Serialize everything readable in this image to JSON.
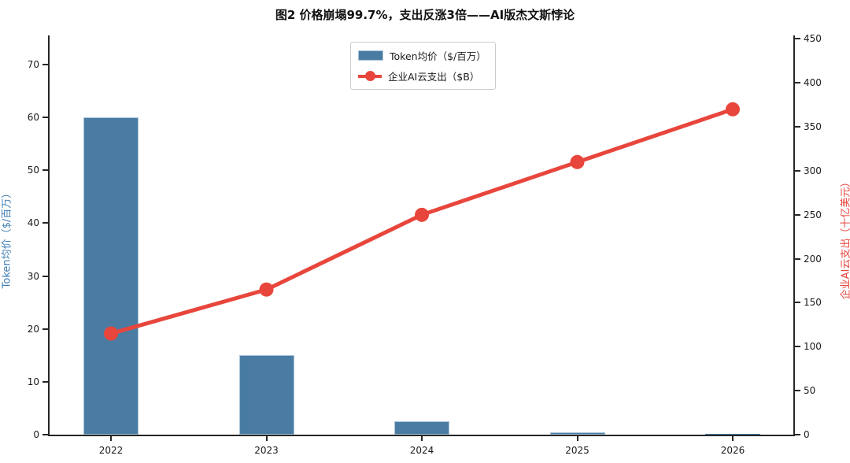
{
  "title": "图2  价格崩塌99.7%，支出反涨3倍——AI版杰文斯悖论",
  "colors": {
    "bar_fill": "#4a7ca3",
    "bar_edge": "#aac4d8",
    "line_red": "#e8463c",
    "left_axis_label": "#3d7db4",
    "right_axis_label": "#e8463c",
    "axis_ink": "#262626"
  },
  "chart_data": {
    "type": "bar+line",
    "title": "图2  价格崩塌99.7%，支出反涨3倍——AI版杰文斯悖论",
    "categories": [
      "2022",
      "2023",
      "2024",
      "2025",
      "2026"
    ],
    "series": [
      {
        "name": "Token均价（$/百万）",
        "type": "bar",
        "y_axis": "left",
        "color": "#4a7ca3",
        "values": [
          60,
          15,
          2.5,
          0.5,
          0.18
        ]
      },
      {
        "name": "企业AI云支出（$B）",
        "type": "line",
        "y_axis": "right",
        "color": "#e8463c",
        "values": [
          115,
          165,
          250,
          310,
          370
        ]
      }
    ],
    "left_axis": {
      "label": "Token均价（$/百万）",
      "ticks": [
        0,
        10,
        20,
        30,
        40,
        50,
        60,
        70
      ],
      "range": [
        0,
        75.5
      ],
      "color": "#3d7db4"
    },
    "right_axis": {
      "label": "企业AI云支出（十亿美元）",
      "ticks": [
        0,
        50,
        100,
        150,
        200,
        250,
        300,
        350,
        400,
        450
      ],
      "range": [
        0,
        454
      ],
      "color": "#e8463c"
    },
    "x_axis": {
      "tick_labels": [
        "2022",
        "2023",
        "2024",
        "2025",
        "2026"
      ]
    },
    "legend": {
      "position": "upper center",
      "entries": [
        "Token均价（$/百万）",
        "企业AI云支出（$B）"
      ]
    },
    "grid": false
  }
}
